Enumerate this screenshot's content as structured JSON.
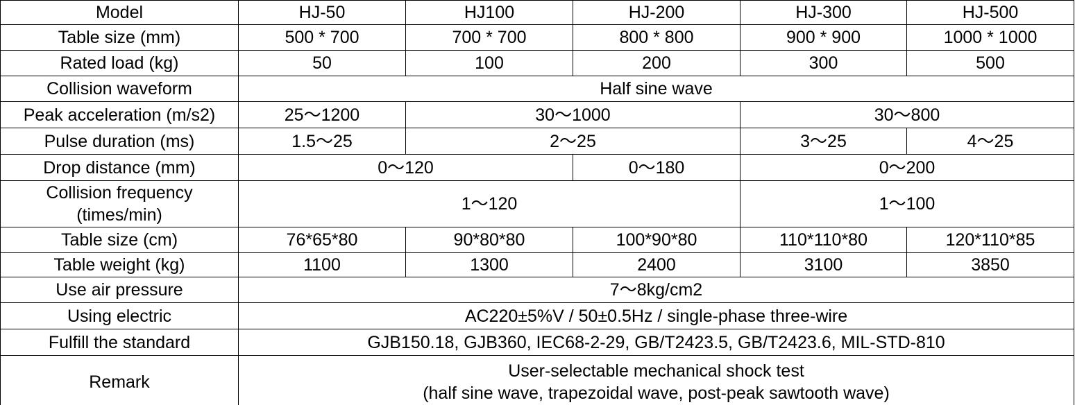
{
  "table": {
    "header": {
      "label": "Model",
      "models": [
        "HJ-50",
        "HJ100",
        "HJ-200",
        "HJ-300",
        "HJ-500"
      ]
    },
    "table_size_mm": {
      "label": "Table size (mm)",
      "values": [
        "500 * 700",
        "700 * 700",
        "800 * 800",
        "900 * 900",
        "1000 * 1000"
      ]
    },
    "rated_load": {
      "label": "Rated load (kg)",
      "values": [
        "50",
        "100",
        "200",
        "300",
        "500"
      ]
    },
    "collision_waveform": {
      "label": "Collision waveform",
      "value": "Half sine wave"
    },
    "peak_acceleration": {
      "label": "Peak acceleration (m/s2)",
      "values": [
        "25～1200",
        "30～1000",
        "30～800"
      ]
    },
    "pulse_duration": {
      "label": "Pulse duration (ms)",
      "values": [
        "1.5～25",
        "2～25",
        "3～25",
        "4～25"
      ]
    },
    "drop_distance": {
      "label": "Drop distance (mm)",
      "values": [
        "0～120",
        "0～180",
        "0～200"
      ]
    },
    "collision_frequency": {
      "label_line1": "Collision frequency",
      "label_line2": "(times/min)",
      "values": [
        "1～120",
        "1～100"
      ]
    },
    "table_size_cm": {
      "label": "Table size (cm)",
      "values": [
        "76*65*80",
        "90*80*80",
        "100*90*80",
        "110*110*80",
        "120*110*85"
      ]
    },
    "table_weight": {
      "label": "Table weight (kg)",
      "values": [
        "1100",
        "1300",
        "2400",
        "3100",
        "3850"
      ]
    },
    "air_pressure": {
      "label": "Use air pressure",
      "value": "7～8kg/cm2"
    },
    "electric": {
      "label": "Using electric",
      "value": "AC220±5%V / 50±0.5Hz / single-phase three-wire"
    },
    "standard": {
      "label": "Fulfill the standard",
      "value": "GJB150.18, GJB360, IEC68-2-29, GB/T2423.5, GB/T2423.6, MIL-STD-810"
    },
    "remark": {
      "label": "Remark",
      "line1": "User-selectable mechanical shock test",
      "line2": "(half sine wave, trapezoidal wave, post-peak sawtooth wave)"
    }
  }
}
